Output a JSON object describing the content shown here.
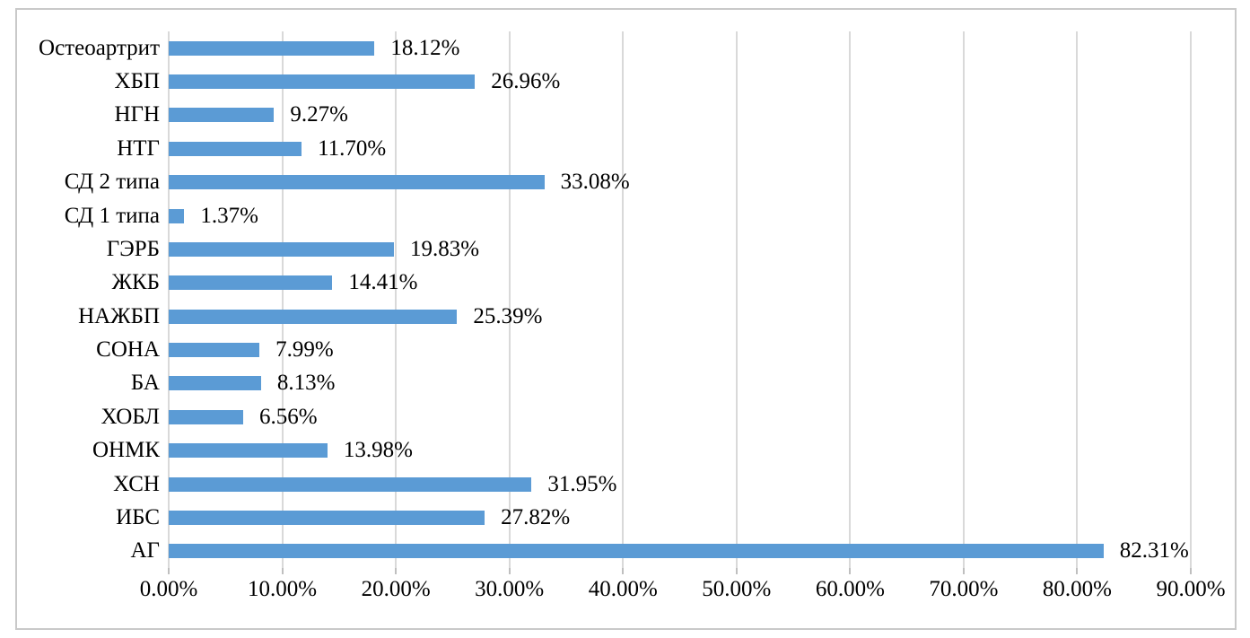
{
  "chart_data": {
    "type": "bar",
    "orientation": "horizontal",
    "title": "",
    "xlabel": "",
    "ylabel": "",
    "xlim": [
      0,
      90
    ],
    "grid": "vertical",
    "legend": "none",
    "categories_top_to_bottom": [
      "Остеоартрит",
      "ХБП",
      "НГН",
      "НТГ",
      "СД 2 типа",
      "СД 1 типа",
      "ГЭРБ",
      "ЖКБ",
      "НАЖБП",
      "СОНА",
      "БА",
      "ХОБЛ",
      "ОНМК",
      "ХСН",
      "ИБС",
      "АГ"
    ],
    "values": [
      18.12,
      26.96,
      9.27,
      11.7,
      33.08,
      1.37,
      19.83,
      14.41,
      25.39,
      7.99,
      8.13,
      6.56,
      13.98,
      31.95,
      27.82,
      82.31
    ],
    "value_labels": [
      "18.12%",
      "26.96%",
      "9.27%",
      "11.70%",
      "33.08%",
      "1.37%",
      "19.83%",
      "14.41%",
      "25.39%",
      "7.99%",
      "8.13%",
      "6.56%",
      "13.98%",
      "31.95%",
      "27.82%",
      "82.31%"
    ],
    "x_ticks": [
      "0.00%",
      "10.00%",
      "20.00%",
      "30.00%",
      "40.00%",
      "50.00%",
      "60.00%",
      "70.00%",
      "80.00%",
      "90.00%"
    ],
    "x_tick_values": [
      0,
      10,
      20,
      30,
      40,
      50,
      60,
      70,
      80,
      90
    ],
    "colors": {
      "bar": "#5b9bd5",
      "gridline": "#d9d9d9",
      "tickmark": "#bfbfbf",
      "border": "#c9c9c9",
      "text": "#000000",
      "background": "#ffffff"
    }
  }
}
